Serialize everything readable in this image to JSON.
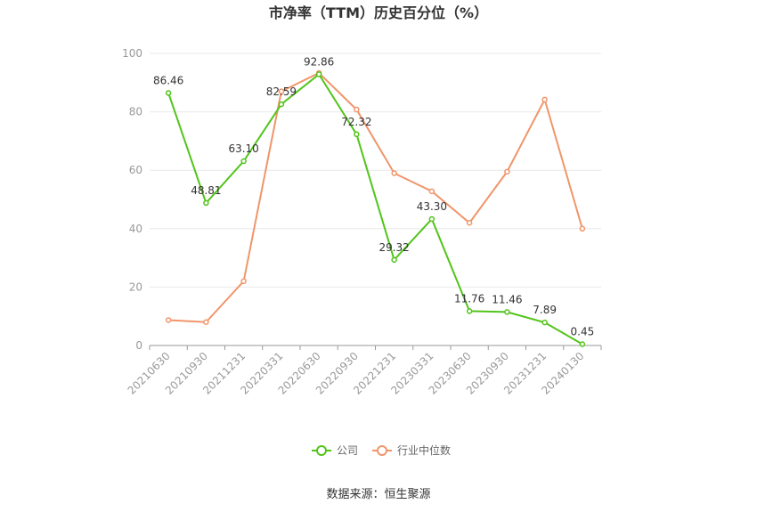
{
  "chart_data": {
    "type": "line",
    "title": "市净率（TTM）历史百分位（%）",
    "xlabel": "",
    "ylabel": "",
    "ylim": [
      0,
      100
    ],
    "yticks": [
      0,
      20,
      40,
      60,
      80,
      100
    ],
    "categories": [
      "20210630",
      "20210930",
      "20211231",
      "20220331",
      "20220630",
      "20220930",
      "20221231",
      "20230331",
      "20230630",
      "20230930",
      "20231231",
      "20240130"
    ],
    "series": [
      {
        "name": "公司",
        "color": "#52c41a",
        "values": [
          86.46,
          48.81,
          63.1,
          82.59,
          92.86,
          72.32,
          29.32,
          43.3,
          11.76,
          11.46,
          7.89,
          0.45
        ],
        "labels": [
          "86.46",
          "48.81",
          "63.10",
          "82.59",
          "92.86",
          "72.32",
          "29.32",
          "43.30",
          "11.76",
          "11.46",
          "7.89",
          "0.45"
        ]
      },
      {
        "name": "行业中位数",
        "color": "#f0956a",
        "values": [
          8.7,
          8.0,
          22.0,
          87.0,
          93.3,
          80.8,
          59.0,
          52.8,
          42.0,
          59.5,
          84.2,
          40.0
        ]
      }
    ],
    "legend_position": "bottom-center",
    "grid": true
  },
  "source": "数据来源：恒生聚源"
}
